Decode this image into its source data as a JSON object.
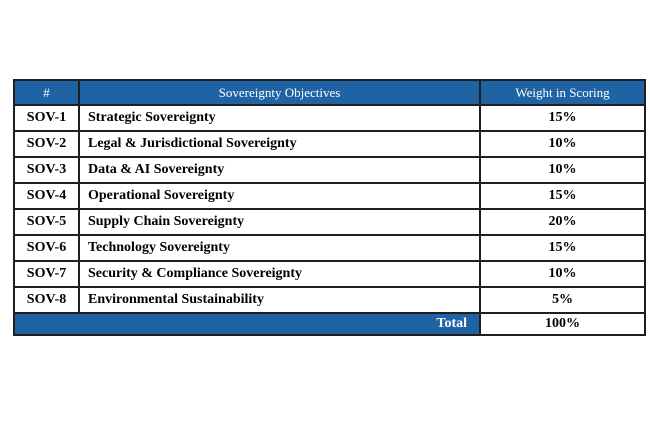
{
  "colors": {
    "header_bg": "#2063A5",
    "header_text": "#ffffff",
    "border": "#1f1f1f"
  },
  "table": {
    "columns": [
      "#",
      "Sovereignty Objectives",
      "Weight in Scoring"
    ],
    "rows": [
      {
        "id": "SOV-1",
        "objective": "Strategic Sovereignty",
        "weight": "15%"
      },
      {
        "id": "SOV-2",
        "objective": "Legal & Jurisdictional Sovereignty",
        "weight": "10%"
      },
      {
        "id": "SOV-3",
        "objective": "Data & AI Sovereignty",
        "weight": "10%"
      },
      {
        "id": "SOV-4",
        "objective": "Operational Sovereignty",
        "weight": "15%"
      },
      {
        "id": "SOV-5",
        "objective": "Supply Chain Sovereignty",
        "weight": "20%"
      },
      {
        "id": "SOV-6",
        "objective": "Technology Sovereignty",
        "weight": "15%"
      },
      {
        "id": "SOV-7",
        "objective": "Security & Compliance Sovereignty",
        "weight": "10%"
      },
      {
        "id": "SOV-8",
        "objective": "Environmental Sustainability",
        "weight": "5%"
      }
    ],
    "total_label": "Total",
    "total_value": "100%"
  }
}
